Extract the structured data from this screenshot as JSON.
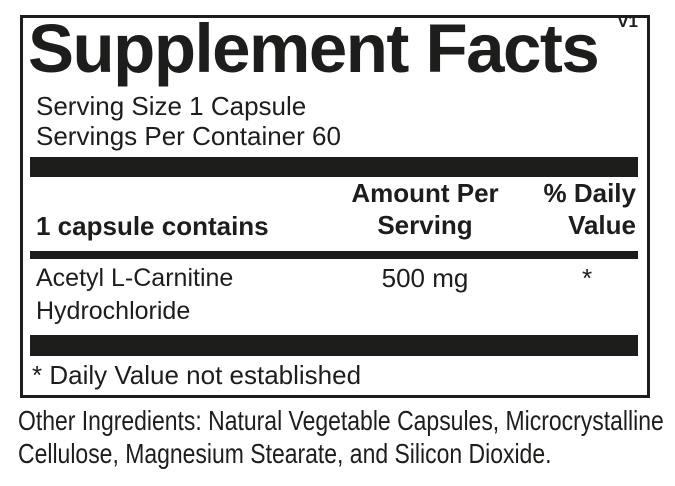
{
  "colors": {
    "ink": "#1d1d1b",
    "background": "#ffffff"
  },
  "label": {
    "version": "V1",
    "title": "Supplement Facts",
    "serving_size": "Serving Size 1 Capsule",
    "servings_per_container": "Servings Per Container 60",
    "columns": {
      "left": "1 capsule contains",
      "amount": "Amount Per\nServing",
      "daily_value": "% Daily\nValue"
    },
    "rows": [
      {
        "name": "Acetyl L-Carnitine\nHydrochloride",
        "amount": "500 mg",
        "daily_value": "*"
      }
    ],
    "footnote": "* Daily Value not established",
    "other_ingredients": {
      "line1": "Other Ingredients: Natural Vegetable Capsules, Microcrystalline",
      "line2": "Cellulose, Magnesium Stearate, and Silicon Dioxide."
    }
  }
}
